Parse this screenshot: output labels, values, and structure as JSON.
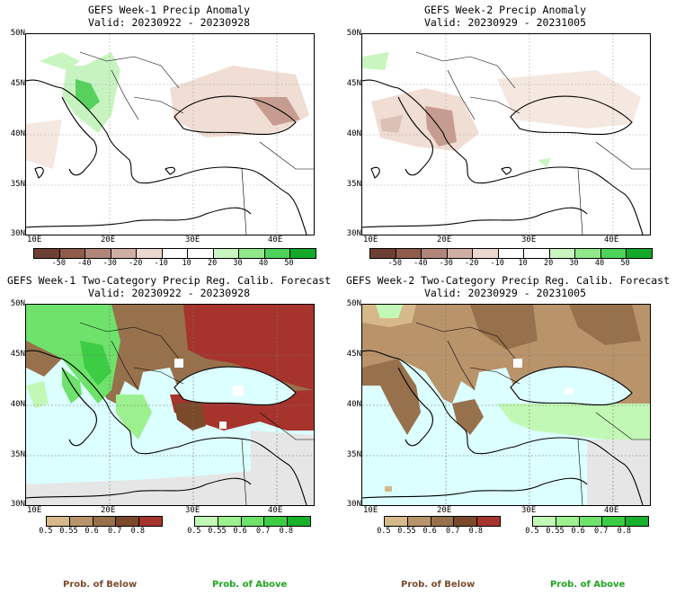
{
  "panels": [
    {
      "title": "GEFS Week-1 Precip Anomaly",
      "valid": "Valid: 20230922 - 20230928"
    },
    {
      "title": "GEFS Week-2 Precip Anomaly",
      "valid": "Valid: 20230929 - 20231005"
    },
    {
      "title": "GEFS Week-1 Two-Category Precip Reg. Calib. Forecast",
      "valid": "Valid: 20230922 - 20230928"
    },
    {
      "title": "GEFS Week-2 Two-Category Precip Reg. Calib. Forecast",
      "valid": "Valid: 20230929 - 20231005"
    }
  ],
  "lat_labels": [
    "50N",
    "45N",
    "40N",
    "35N",
    "30N"
  ],
  "lon_labels": [
    "10E",
    "20E",
    "30E",
    "40E"
  ],
  "anomaly_colorbar": {
    "labels": [
      "-50",
      "-40",
      "-30",
      "-20",
      "-10",
      "10",
      "20",
      "30",
      "40",
      "50"
    ],
    "colors": [
      "#6e3f33",
      "#8f5b4b",
      "#b0857a",
      "#cfaea3",
      "#ecd8cf",
      "#ffffff",
      "#ffffff",
      "#c9f5c0",
      "#91e88a",
      "#4ed25a",
      "#14a82b"
    ]
  },
  "below_colorbar": {
    "labels": [
      "0.5",
      "0.55",
      "0.6",
      "0.7",
      "0.8"
    ],
    "colors": [
      "#d6b98a",
      "#b9936a",
      "#97714c",
      "#7a4a2a",
      "#a7332d"
    ]
  },
  "above_colorbar": {
    "labels": [
      "0.5",
      "0.55",
      "0.6",
      "0.7",
      "0.8"
    ],
    "colors": [
      "#c2f8b5",
      "#9cf08e",
      "#6ee26a",
      "#3ccd44",
      "#18b12c"
    ]
  },
  "legend": {
    "below": "Prob. of Below",
    "above": "Prob. of Above"
  },
  "colors": {
    "sea": "#dcffff",
    "land_grey": "#e6e6e6"
  }
}
